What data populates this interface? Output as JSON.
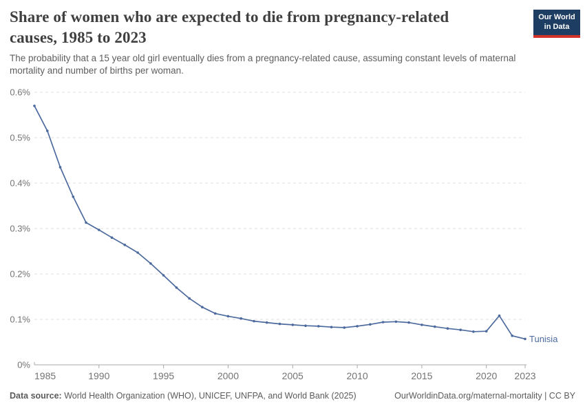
{
  "header": {
    "title_line1": "Share of women who are expected to die from pregnancy-related",
    "title_line2": "causes, 1985 to 2023",
    "subtitle": "The probability that a 15 year old girl eventually dies from a pregnancy-related cause, assuming constant levels of maternal mortality and number of births per woman.",
    "logo": {
      "line1": "Our World",
      "line2": "in Data"
    }
  },
  "chart_data": {
    "type": "line",
    "title": "Share of women who are expected to die from pregnancy-related causes, 1985 to 2023",
    "subtitle": "The probability that a 15 year old girl eventually dies from a pregnancy-related cause, assuming constant levels of maternal mortality and number of births per woman.",
    "unit": "%",
    "grid": "horizontal-dashed",
    "legend_position": "end-of-line",
    "xlim": [
      1985,
      2023
    ],
    "ylim": [
      0,
      0.6
    ],
    "x_ticks": [
      1985,
      1990,
      1995,
      2000,
      2005,
      2010,
      2015,
      2020,
      2023
    ],
    "y_ticks": [
      0,
      0.1,
      0.2,
      0.3,
      0.4,
      0.5,
      0.6
    ],
    "y_tick_labels": [
      "0%",
      "0.1%",
      "0.2%",
      "0.3%",
      "0.4%",
      "0.5%",
      "0.6%"
    ],
    "series": [
      {
        "name": "Tunisia",
        "color": "#4c6a9d",
        "x": [
          1985,
          1986,
          1987,
          1988,
          1989,
          1990,
          1991,
          1992,
          1993,
          1994,
          1995,
          1996,
          1997,
          1998,
          1999,
          2000,
          2001,
          2002,
          2003,
          2004,
          2005,
          2006,
          2007,
          2008,
          2009,
          2010,
          2011,
          2012,
          2013,
          2014,
          2015,
          2016,
          2017,
          2018,
          2019,
          2020,
          2021,
          2022,
          2023
        ],
        "values": [
          0.57,
          0.515,
          0.435,
          0.37,
          0.313,
          0.297,
          0.28,
          0.264,
          0.247,
          0.223,
          0.197,
          0.17,
          0.146,
          0.127,
          0.113,
          0.107,
          0.102,
          0.096,
          0.093,
          0.09,
          0.088,
          0.086,
          0.085,
          0.083,
          0.082,
          0.085,
          0.089,
          0.094,
          0.095,
          0.093,
          0.088,
          0.084,
          0.08,
          0.077,
          0.073,
          0.074,
          0.108,
          0.064,
          0.057
        ]
      }
    ],
    "colors": {
      "gridline": "#dcdcdc",
      "axis": "#a8a8a8",
      "tick_label": "#737373"
    }
  },
  "footer": {
    "source_label": "Data source:",
    "source_text": " World Health Organization (WHO), UNICEF, UNFPA, and World Bank (2025)",
    "attribution": "OurWorldinData.org/maternal-mortality | CC BY"
  }
}
